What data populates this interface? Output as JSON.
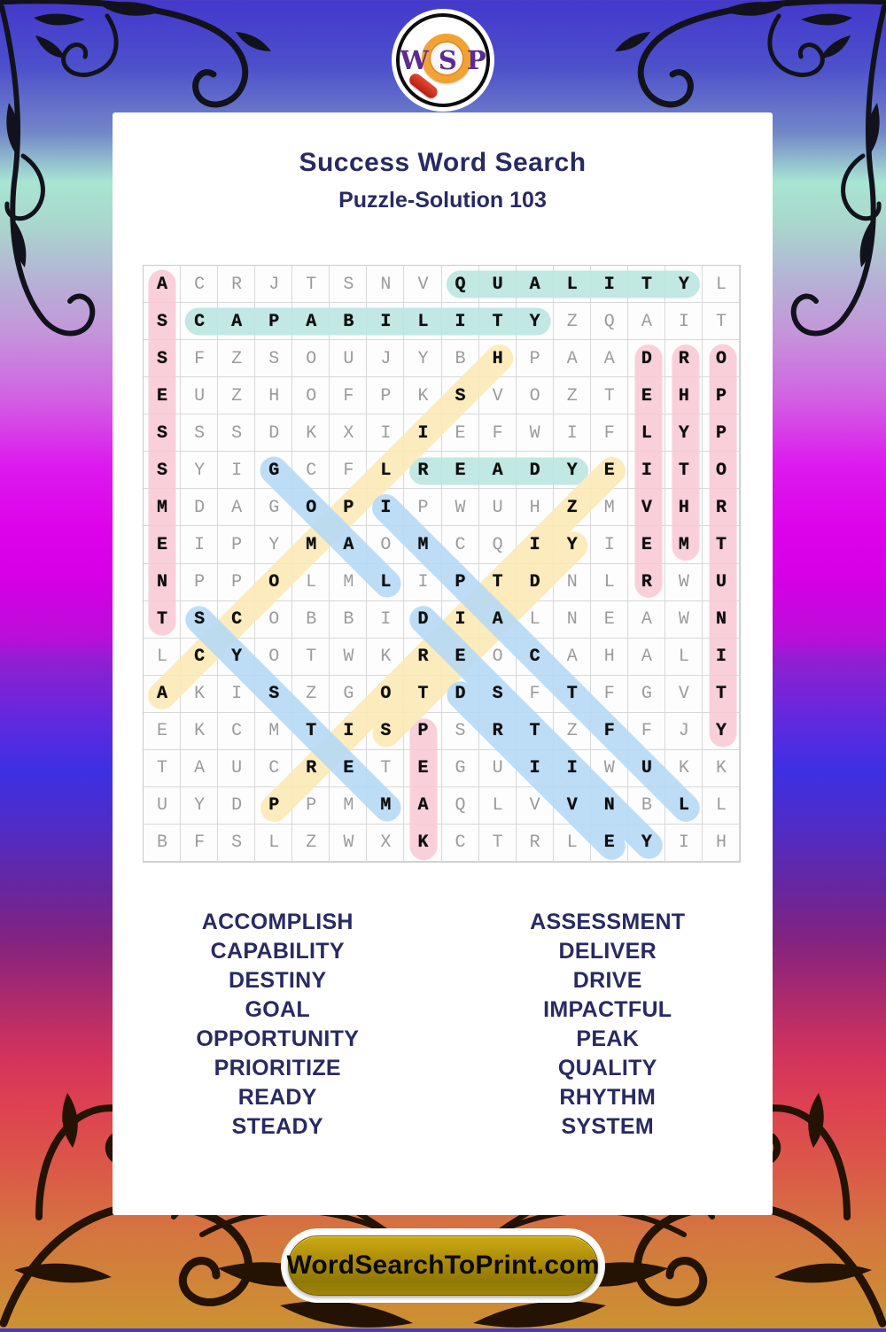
{
  "logo": {
    "letters": [
      "W",
      "S",
      "P"
    ]
  },
  "header": {
    "title": "Success Word Search",
    "subtitle": "Puzzle-Solution 103"
  },
  "grid": {
    "size": 16,
    "rows": [
      "ACRJTSNVQUALITYL",
      "SCAPABILITYZQAIT",
      "SFZSOUJYBHPAADRO",
      "EUZHOFPKSVOZTEHP",
      "SSSDKXIIEFWIFLYP",
      "SYIGCFLREADYEITO",
      "MDAGOPIPWUHZMVHR",
      "EIPYMAOMCQIYIEMT",
      "NPPOLMLIPTDNLRWU",
      "TSCOBBIDIALNEAWN",
      "LCYOTWKREOCAHALI",
      "AKISZGOTDSFTFGVT",
      "EKCMTISPSRTZFFJY",
      "TAUCRETEGUIIWUKK",
      "UYDPPMMAQLVVNBLL",
      "BFSLZWXKCTRLEYIH"
    ],
    "solutions": [
      {
        "word": "ASSESSMENT",
        "row": 1,
        "col": 1,
        "dr": 1,
        "dc": 0,
        "color": "pink"
      },
      {
        "word": "DELIVER",
        "row": 3,
        "col": 14,
        "dr": 1,
        "dc": 0,
        "color": "pink"
      },
      {
        "word": "RHYTHM",
        "row": 3,
        "col": 15,
        "dr": 1,
        "dc": 0,
        "color": "pink"
      },
      {
        "word": "OPPORTUNITY",
        "row": 3,
        "col": 16,
        "dr": 1,
        "dc": 0,
        "color": "pink"
      },
      {
        "word": "PEAK",
        "row": 13,
        "col": 8,
        "dr": 1,
        "dc": 0,
        "color": "pink"
      },
      {
        "word": "QUALITY",
        "row": 1,
        "col": 9,
        "dr": 0,
        "dc": 1,
        "color": "teal"
      },
      {
        "word": "CAPABILITY",
        "row": 2,
        "col": 2,
        "dr": 0,
        "dc": 1,
        "color": "teal"
      },
      {
        "word": "READY",
        "row": 6,
        "col": 8,
        "dr": 0,
        "dc": 1,
        "color": "teal"
      },
      {
        "word": "ACCOMPLISH",
        "row": 12,
        "col": 1,
        "dr": -1,
        "dc": 1,
        "color": "yellow"
      },
      {
        "word": "PRIORITIZE",
        "row": 15,
        "col": 4,
        "dr": -1,
        "dc": 1,
        "color": "yellow"
      },
      {
        "word": "STEADY",
        "row": 13,
        "col": 7,
        "dr": -1,
        "dc": 1,
        "color": "yellow"
      },
      {
        "word": "GOAL",
        "row": 6,
        "col": 4,
        "dr": 1,
        "dc": 1,
        "color": "blue"
      },
      {
        "word": "SYSTEM",
        "row": 10,
        "col": 2,
        "dr": 1,
        "dc": 1,
        "color": "blue"
      },
      {
        "word": "IMPACTFUL",
        "row": 7,
        "col": 7,
        "dr": 1,
        "dc": 1,
        "color": "blue"
      },
      {
        "word": "DESTINY",
        "row": 10,
        "col": 8,
        "dr": 1,
        "dc": 1,
        "color": "blue"
      },
      {
        "word": "DRIVE",
        "row": 12,
        "col": 9,
        "dr": 1,
        "dc": 1,
        "color": "blue"
      }
    ]
  },
  "colors": {
    "pink": "#f8c9d5",
    "teal": "#b9e5e0",
    "yellow": "#fce9b4",
    "blue": "#b4d8f6",
    "navy": "#292a63"
  },
  "word_list": {
    "left": [
      "ACCOMPLISH",
      "CAPABILITY",
      "DESTINY",
      "GOAL",
      "OPPORTUNITY",
      "PRIORITIZE",
      "READY",
      "STEADY"
    ],
    "right": [
      "ASSESSMENT",
      "DELIVER",
      "DRIVE",
      "IMPACTFUL",
      "PEAK",
      "QUALITY",
      "RHYTHM",
      "SYSTEM"
    ]
  },
  "footer": {
    "site_label": "WordSearchToPrint.com"
  }
}
